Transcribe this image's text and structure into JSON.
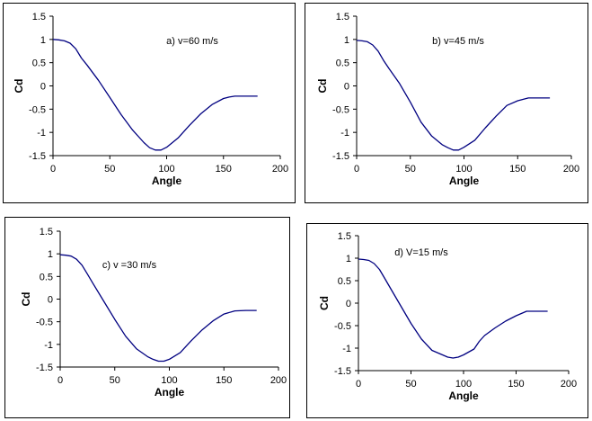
{
  "chart_data": [
    {
      "type": "line",
      "annotation": "a) v=60 m/s",
      "xlabel": "Angle",
      "ylabel": "Cd",
      "xlim": [
        0,
        200
      ],
      "ylim": [
        -1.5,
        1.5
      ],
      "xticks": [
        "0",
        "50",
        "100",
        "150",
        "200"
      ],
      "yticks": [
        "1.5",
        "1",
        "0.5",
        "0",
        "-0.5",
        "-1",
        "-1.5"
      ],
      "grid": false,
      "series": [
        {
          "x": [
            0,
            5,
            10,
            15,
            20,
            25,
            30,
            40,
            50,
            60,
            70,
            80,
            85,
            90,
            95,
            100,
            110,
            120,
            130,
            140,
            150,
            155,
            160,
            170,
            180
          ],
          "y": [
            1.0,
            0.99,
            0.97,
            0.92,
            0.8,
            0.6,
            0.45,
            0.12,
            -0.25,
            -0.62,
            -0.95,
            -1.22,
            -1.33,
            -1.38,
            -1.38,
            -1.32,
            -1.12,
            -0.85,
            -0.6,
            -0.4,
            -0.27,
            -0.24,
            -0.22,
            -0.22,
            -0.22
          ],
          "color": "#000080"
        }
      ]
    },
    {
      "type": "line",
      "annotation": "b) v=45 m/s",
      "xlabel": "Angle",
      "ylabel": "Cd",
      "xlim": [
        0,
        200
      ],
      "ylim": [
        -1.5,
        1.5
      ],
      "xticks": [
        "0",
        "50",
        "100",
        "150",
        "200"
      ],
      "yticks": [
        "1.5",
        "1",
        "0.5",
        "0",
        "-0.5",
        "-1",
        "-1.5"
      ],
      "grid": false,
      "series": [
        {
          "x": [
            0,
            5,
            10,
            15,
            20,
            25,
            30,
            40,
            50,
            60,
            70,
            80,
            85,
            90,
            95,
            100,
            110,
            120,
            130,
            140,
            150,
            160,
            170,
            180
          ],
          "y": [
            0.98,
            0.97,
            0.95,
            0.88,
            0.75,
            0.55,
            0.38,
            0.05,
            -0.35,
            -0.78,
            -1.08,
            -1.27,
            -1.33,
            -1.38,
            -1.38,
            -1.32,
            -1.17,
            -0.9,
            -0.65,
            -0.42,
            -0.32,
            -0.26,
            -0.26,
            -0.26
          ],
          "color": "#000080"
        }
      ]
    },
    {
      "type": "line",
      "annotation": "c) v =30 m/s",
      "xlabel": "Angle",
      "ylabel": "Cd",
      "xlim": [
        0,
        200
      ],
      "ylim": [
        -1.5,
        1.5
      ],
      "xticks": [
        "0",
        "50",
        "100",
        "150",
        "200"
      ],
      "yticks": [
        "1.5",
        "1",
        "0.5",
        "0",
        "-0.5",
        "-1",
        "-1.5"
      ],
      "grid": false,
      "series": [
        {
          "x": [
            0,
            5,
            10,
            15,
            20,
            25,
            30,
            40,
            50,
            60,
            70,
            80,
            85,
            90,
            95,
            100,
            110,
            120,
            130,
            140,
            150,
            160,
            170,
            180
          ],
          "y": [
            0.98,
            0.97,
            0.95,
            0.88,
            0.75,
            0.55,
            0.35,
            -0.05,
            -0.45,
            -0.82,
            -1.1,
            -1.27,
            -1.33,
            -1.37,
            -1.37,
            -1.33,
            -1.18,
            -0.92,
            -0.68,
            -0.48,
            -0.33,
            -0.26,
            -0.25,
            -0.25
          ],
          "color": "#000080"
        }
      ]
    },
    {
      "type": "line",
      "annotation": "d) V=15 m/s",
      "xlabel": "Angle",
      "ylabel": "Cd",
      "xlim": [
        0,
        200
      ],
      "ylim": [
        -1.5,
        1.5
      ],
      "xticks": [
        "0",
        "50",
        "100",
        "150",
        "200"
      ],
      "yticks": [
        "1.5",
        "1",
        "0.5",
        "0",
        "-0.5",
        "-1",
        "-1.5"
      ],
      "grid": false,
      "series": [
        {
          "x": [
            0,
            5,
            10,
            15,
            20,
            25,
            30,
            40,
            50,
            60,
            70,
            80,
            85,
            90,
            95,
            100,
            110,
            115,
            120,
            130,
            140,
            150,
            160,
            170,
            180
          ],
          "y": [
            0.98,
            0.97,
            0.95,
            0.88,
            0.75,
            0.55,
            0.35,
            -0.05,
            -0.45,
            -0.8,
            -1.05,
            -1.15,
            -1.2,
            -1.22,
            -1.2,
            -1.15,
            -1.02,
            -0.85,
            -0.72,
            -0.55,
            -0.4,
            -0.28,
            -0.18,
            -0.18,
            -0.18
          ],
          "color": "#000080"
        }
      ]
    }
  ]
}
